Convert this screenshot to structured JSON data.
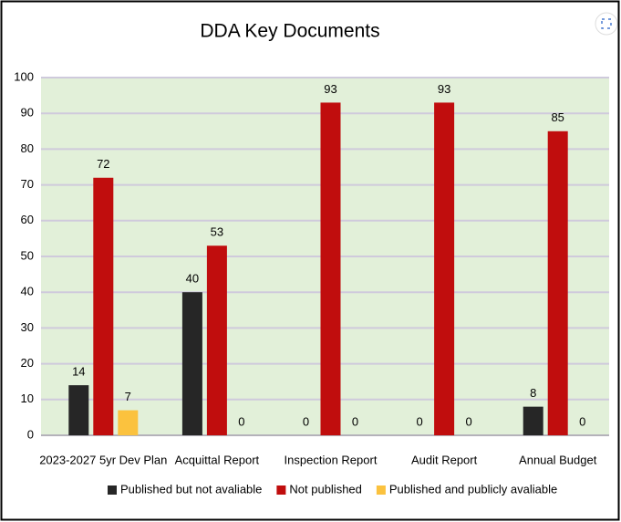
{
  "chart_data": {
    "type": "bar",
    "title": "DDA Key Documents",
    "categories": [
      "2023-2027 5yr Dev Plan",
      "Acquittal Report",
      "Inspection Report",
      "Audit Report",
      "Annual Budget"
    ],
    "series": [
      {
        "name": "Published but not avaliable",
        "color": "#262626",
        "values": [
          14,
          40,
          0,
          0,
          8
        ]
      },
      {
        "name": "Not published",
        "color": "#c00d0d",
        "values": [
          72,
          53,
          93,
          93,
          85
        ]
      },
      {
        "name": "Published and publicly avaliable",
        "color": "#fbc23e",
        "values": [
          7,
          0,
          0,
          0,
          0
        ]
      }
    ],
    "ylim": [
      0,
      100
    ],
    "yticks": [
      0,
      10,
      20,
      30,
      40,
      50,
      60,
      70,
      80,
      90,
      100
    ],
    "grid": true,
    "background": "#e2f0d9",
    "legend": "bottom"
  }
}
